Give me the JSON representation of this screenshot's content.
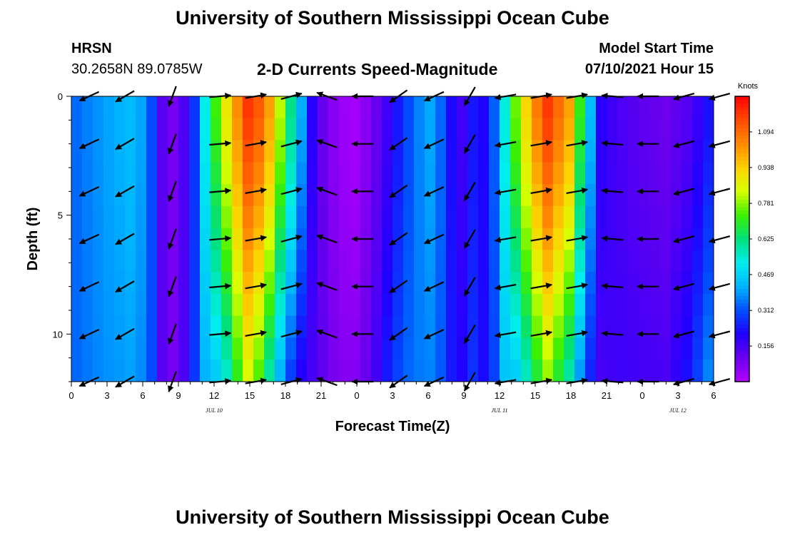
{
  "page": {
    "title_top": "University of Southern Mississippi Ocean Cube",
    "title_bottom": "University of Southern Mississippi Ocean Cube",
    "station": "HRSN",
    "coords": "30.2658N  89.0785W",
    "model_start_label": "Model Start Time",
    "model_start_value": "07/10/2021 Hour 15"
  },
  "chart_data": {
    "type": "heatmap",
    "title": "2-D Currents Speed-Magnitude",
    "xlabel": "Forecast Time(Z)",
    "ylabel": "Depth (ft)",
    "units": "Knots",
    "xlim": [
      0,
      54
    ],
    "ylim": [
      0,
      12
    ],
    "x_tick_values": [
      0,
      3,
      6,
      9,
      12,
      15,
      18,
      21,
      24,
      27,
      30,
      33,
      36,
      39,
      42,
      45,
      48,
      51,
      54
    ],
    "x_tick_labels": [
      "0",
      "3",
      "6",
      "9",
      "12",
      "15",
      "18",
      "21",
      "0",
      "3",
      "6",
      "9",
      "12",
      "15",
      "18",
      "21",
      "0",
      "3",
      "6"
    ],
    "y_tick_values": [
      0,
      5,
      10
    ],
    "y_tick_labels": [
      "0",
      "5",
      "10"
    ],
    "date_labels": [
      {
        "x": 12,
        "text": "JUL 10"
      },
      {
        "x": 36,
        "text": "JUL 11"
      },
      {
        "x": 51,
        "text": "JUL 12"
      }
    ],
    "colorbar": {
      "min": 0.0,
      "max": 1.25,
      "tick_values": [
        0.156,
        0.312,
        0.469,
        0.625,
        0.781,
        0.938,
        1.094
      ],
      "tick_labels": [
        "0.156",
        "0.312",
        "0.469",
        "0.625",
        "0.781",
        "0.938",
        "1.094"
      ],
      "colors": [
        "#b400ff",
        "#6a00ee",
        "#1f00ff",
        "#0050ff",
        "#00b4ff",
        "#00eeee",
        "#00e07a",
        "#3cf000",
        "#d8ff00",
        "#ffd000",
        "#ff8a00",
        "#ff4a00",
        "#ff0000"
      ]
    },
    "depths": [
      0,
      1,
      2,
      3,
      4,
      5,
      6,
      7,
      8,
      9,
      10,
      11,
      12
    ],
    "speed_profile": [
      {
        "t": 0,
        "speed": 0.33,
        "deep_change": 0.0
      },
      {
        "t": 3,
        "speed": 0.4,
        "deep_change": -0.02
      },
      {
        "t": 5.5,
        "speed": 0.44,
        "deep_change": -0.04
      },
      {
        "t": 6.8,
        "speed": 0.3,
        "deep_change": 0.0
      },
      {
        "t": 7.8,
        "speed": 0.1,
        "deep_change": 0.0
      },
      {
        "t": 9,
        "speed": 0.08,
        "deep_change": 0.0
      },
      {
        "t": 10.5,
        "speed": 0.3,
        "deep_change": 0.0
      },
      {
        "t": 11.5,
        "speed": 0.6,
        "deep_change": -0.15
      },
      {
        "t": 12.5,
        "speed": 0.8,
        "deep_change": -0.35
      },
      {
        "t": 14,
        "speed": 1.05,
        "deep_change": -0.35
      },
      {
        "t": 15,
        "speed": 1.2,
        "deep_change": -0.35
      },
      {
        "t": 16.5,
        "speed": 1.05,
        "deep_change": -0.45
      },
      {
        "t": 18,
        "speed": 0.72,
        "deep_change": -0.4
      },
      {
        "t": 19.5,
        "speed": 0.38,
        "deep_change": -0.2
      },
      {
        "t": 20.5,
        "speed": 0.14,
        "deep_change": 0.0
      },
      {
        "t": 22.5,
        "speed": 0.04,
        "deep_change": 0.03
      },
      {
        "t": 24,
        "speed": 0.02,
        "deep_change": 0.05
      },
      {
        "t": 25.5,
        "speed": 0.1,
        "deep_change": 0.05
      },
      {
        "t": 26.5,
        "speed": 0.16,
        "deep_change": 0.08
      },
      {
        "t": 28,
        "speed": 0.28,
        "deep_change": 0.05
      },
      {
        "t": 30,
        "speed": 0.42,
        "deep_change": -0.05
      },
      {
        "t": 31.5,
        "speed": 0.3,
        "deep_change": 0.0
      },
      {
        "t": 32.5,
        "speed": 0.12,
        "deep_change": 0.05
      },
      {
        "t": 33.5,
        "speed": 0.24,
        "deep_change": 0.05
      },
      {
        "t": 35,
        "speed": 0.2,
        "deep_change": 0.0
      },
      {
        "t": 36.5,
        "speed": 0.55,
        "deep_change": -0.1
      },
      {
        "t": 37.5,
        "speed": 0.8,
        "deep_change": -0.35
      },
      {
        "t": 39,
        "speed": 1.05,
        "deep_change": -0.4
      },
      {
        "t": 40,
        "speed": 1.18,
        "deep_change": -0.4
      },
      {
        "t": 42,
        "speed": 1.0,
        "deep_change": -0.45
      },
      {
        "t": 43,
        "speed": 0.62,
        "deep_change": -0.3
      },
      {
        "t": 44.5,
        "speed": 0.2,
        "deep_change": -0.05
      },
      {
        "t": 46,
        "speed": 0.15,
        "deep_change": 0.02
      },
      {
        "t": 48,
        "speed": 0.12,
        "deep_change": 0.04
      },
      {
        "t": 50,
        "speed": 0.1,
        "deep_change": 0.05
      },
      {
        "t": 52,
        "speed": 0.14,
        "deep_change": 0.1
      },
      {
        "t": 53.5,
        "speed": 0.22,
        "deep_change": 0.15
      },
      {
        "t": 54,
        "speed": 0.26,
        "deep_change": 0.15
      }
    ],
    "vector_times": [
      1.5,
      4.5,
      8.5,
      12.5,
      15.5,
      18.5,
      21.5,
      24.5,
      27.5,
      30.5,
      33.5,
      36.5,
      39.5,
      42.5,
      45.5,
      48.5,
      51.5,
      54.5
    ],
    "vector_depths": [
      0,
      2,
      4,
      6,
      8,
      10,
      12
    ],
    "vector_direction_deg": [
      205,
      210,
      250,
      5,
      10,
      15,
      160,
      180,
      215,
      205,
      240,
      190,
      10,
      10,
      175,
      180,
      195,
      195
    ]
  }
}
